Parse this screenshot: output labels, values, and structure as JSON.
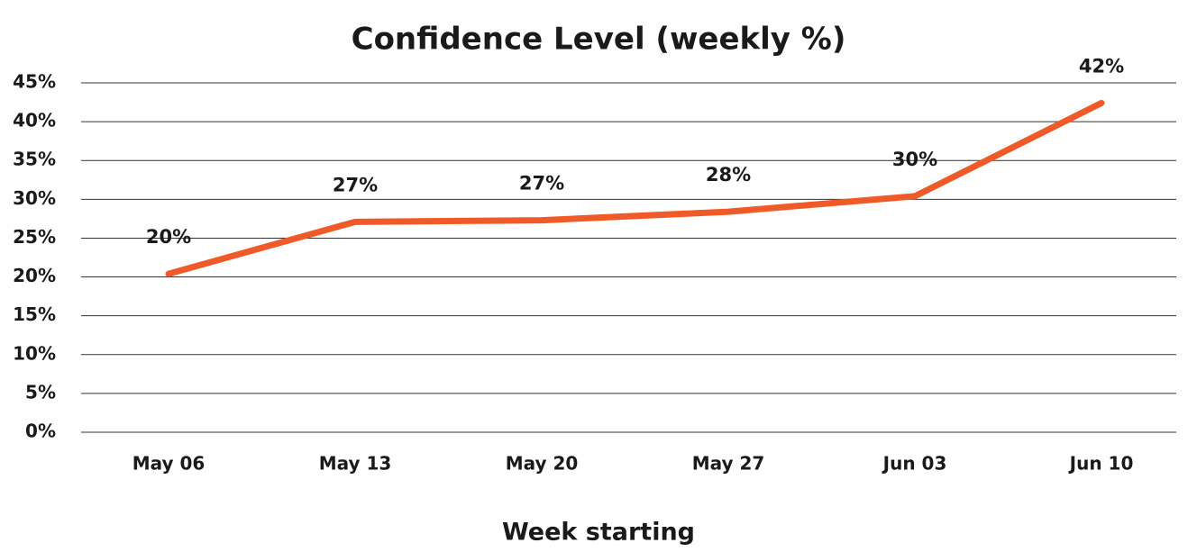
{
  "chart_data": {
    "type": "line",
    "title": "Confidence Level (weekly %)",
    "x_label": "Week starting",
    "categories": [
      "May 06",
      "May 13",
      "May 20",
      "May 27",
      "Jun 03",
      "Jun 10"
    ],
    "values": [
      20.4,
      27.1,
      27.3,
      28.4,
      30.4,
      42.4
    ],
    "value_labels": [
      "20%",
      "27%",
      "27%",
      "28%",
      "30%",
      "42%"
    ],
    "color": "#f05a28",
    "ylim": [
      0,
      45
    ],
    "yticks": [
      {
        "value": 0,
        "label": "0%"
      },
      {
        "value": 5,
        "label": "5%"
      },
      {
        "value": 10,
        "label": "10%"
      },
      {
        "value": 15,
        "label": "15%"
      },
      {
        "value": 20,
        "label": "20%"
      },
      {
        "value": 25,
        "label": "25%"
      },
      {
        "value": 30,
        "label": "30%"
      },
      {
        "value": 35,
        "label": "35%"
      },
      {
        "value": 40,
        "label": "40%"
      },
      {
        "value": 45,
        "label": "45%"
      }
    ],
    "grid": true
  }
}
